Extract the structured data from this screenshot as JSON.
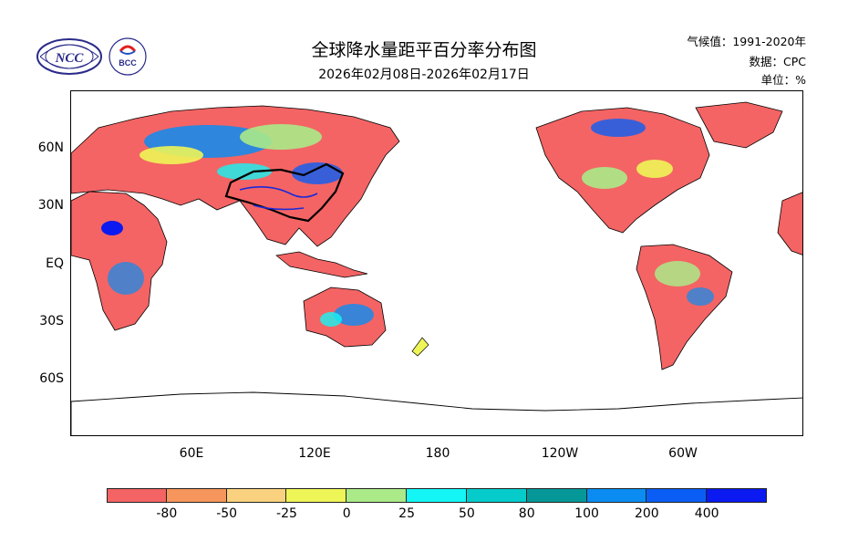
{
  "header": {
    "title": "全球降水量距平百分率分布图",
    "subtitle": "2026年02月08日-2026年02月17日",
    "climate": "气候值：1991-2020年",
    "source": "数据：CPC",
    "unit": "单位：%"
  },
  "logos": {
    "ncc": "NCC",
    "bcc": "BCC"
  },
  "axes": {
    "lat_labels": [
      "60N",
      "30N",
      "EQ",
      "30S",
      "60S"
    ],
    "lon_labels": [
      "60E",
      "120E",
      "180",
      "120W",
      "60W"
    ]
  },
  "colorbar": {
    "labels": [
      "-80",
      "-50",
      "-25",
      "0",
      "25",
      "50",
      "80",
      "100",
      "200",
      "400"
    ],
    "colors": [
      "#f46464",
      "#f6955c",
      "#fad27f",
      "#eef556",
      "#aaea88",
      "#14f5f5",
      "#06cbcb",
      "#069898",
      "#0a8cf2",
      "#0a5ef5",
      "#0a1af0"
    ]
  }
}
